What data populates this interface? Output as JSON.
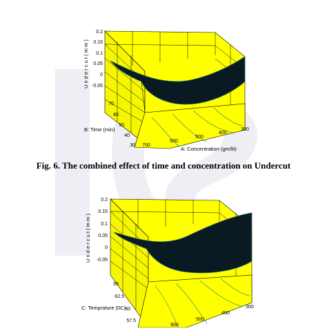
{
  "caption": "Fig. 6. The combined effect of time and concentration on Undercut",
  "colors": {
    "floor": "#ffff00",
    "walls": "#f0f000",
    "surface": "#0a1a22",
    "surface_edge": "#2a6f6a",
    "watermark": "#e8e8ee"
  },
  "chart_data": [
    {
      "type": "surface",
      "title": "",
      "zlabel": "U n d e r c u t ( m m )",
      "z_ticks": [
        "0.2",
        "0.15",
        "0.1",
        "0.05",
        "0",
        "-0.05"
      ],
      "ylabel": "B: Time (min)",
      "y_ticks": [
        "70",
        "60",
        "50",
        "40",
        "30"
      ],
      "xlabel": "A: Concentration (gm/lit)",
      "x_ticks": [
        "700",
        "600",
        "500",
        "400",
        "300"
      ]
    },
    {
      "type": "surface",
      "title": "",
      "zlabel": "U n d e r c u t ( m m )",
      "z_ticks": [
        "0.2",
        "0.15",
        "0.1",
        "0.05",
        "0",
        "-0.05"
      ],
      "ylabel": "C: Temprature (0C)",
      "y_ticks": [
        "65",
        "62.5",
        "60",
        "57.5"
      ],
      "xlabel": "",
      "x_ticks": [
        "600",
        "500",
        "400",
        "300"
      ]
    }
  ]
}
